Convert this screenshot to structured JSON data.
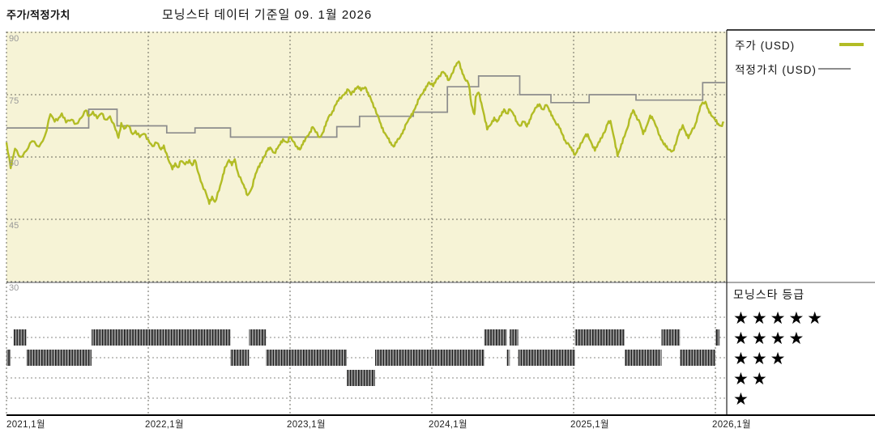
{
  "page": {
    "title": "주가/적정가치",
    "subtitle": "모닝스타 데이터 기준일 09. 1월 2026"
  },
  "legend": {
    "items": [
      {
        "label": "주가 (USD)",
        "color": "#b2bc25"
      },
      {
        "label": "적정가치 (USD)",
        "color": "#8c8c8c"
      }
    ]
  },
  "rating_legend": {
    "title": "모닝스타 등급",
    "rows": [
      {
        "stars": "★★★★★",
        "value": 5
      },
      {
        "stars": "★★★★",
        "value": 4
      },
      {
        "stars": "★★★",
        "value": 3
      },
      {
        "stars": "★★",
        "value": 2
      },
      {
        "stars": "★",
        "value": 1
      }
    ]
  },
  "axes": {
    "y_ticks": [
      "90",
      "75",
      "60",
      "45",
      "30"
    ],
    "x_ticks": [
      "2021,1월",
      "2022,1월",
      "2023,1월",
      "2024,1월",
      "2025,1월",
      "2026,1월"
    ]
  },
  "chart_data": {
    "type": "line",
    "title": "주가/적정가치",
    "as_of": "09. 1월 2026",
    "x_tick_years": [
      2021,
      2022,
      2023,
      2024,
      2025,
      2026
    ],
    "y_ticks": [
      90,
      75,
      60,
      45,
      30
    ],
    "x_range": [
      2021.0,
      2026.08
    ],
    "y_range": [
      30,
      90
    ],
    "plot_bg": "#f6f3d6",
    "grid_color": "#5a5a52",
    "series": [
      {
        "name": "주가 (USD)",
        "type": "line",
        "color": "#b2bc25",
        "points": [
          [
            2021.0,
            63.5
          ],
          [
            2021.03,
            57.3
          ],
          [
            2021.06,
            62.0
          ],
          [
            2021.1,
            60.0
          ],
          [
            2021.14,
            61.5
          ],
          [
            2021.18,
            63.8
          ],
          [
            2021.23,
            62.5
          ],
          [
            2021.27,
            65.0
          ],
          [
            2021.31,
            70.3
          ],
          [
            2021.34,
            68.5
          ],
          [
            2021.37,
            69.5
          ],
          [
            2021.39,
            70.5
          ],
          [
            2021.42,
            68.3
          ],
          [
            2021.46,
            69.0
          ],
          [
            2021.49,
            68.0
          ],
          [
            2021.53,
            69.5
          ],
          [
            2021.56,
            71.2
          ],
          [
            2021.58,
            69.8
          ],
          [
            2021.61,
            70.9
          ],
          [
            2021.64,
            69.3
          ],
          [
            2021.67,
            70.5
          ],
          [
            2021.7,
            69.0
          ],
          [
            2021.73,
            69.8
          ],
          [
            2021.77,
            66.5
          ],
          [
            2021.79,
            64.6
          ],
          [
            2021.81,
            68.2
          ],
          [
            2021.83,
            66.8
          ],
          [
            2021.86,
            67.5
          ],
          [
            2021.89,
            65.5
          ],
          [
            2021.91,
            66.3
          ],
          [
            2021.94,
            64.8
          ],
          [
            2021.97,
            65.6
          ],
          [
            2022.0,
            64.2
          ],
          [
            2022.03,
            62.6
          ],
          [
            2022.06,
            63.4
          ],
          [
            2022.09,
            61.8
          ],
          [
            2022.11,
            62.8
          ],
          [
            2022.14,
            59.5
          ],
          [
            2022.17,
            57.0
          ],
          [
            2022.19,
            58.5
          ],
          [
            2022.21,
            57.5
          ],
          [
            2022.23,
            59.0
          ],
          [
            2022.26,
            58.2
          ],
          [
            2022.29,
            59.3
          ],
          [
            2022.31,
            58.0
          ],
          [
            2022.33,
            59.2
          ],
          [
            2022.35,
            56.5
          ],
          [
            2022.38,
            53.5
          ],
          [
            2022.41,
            51.0
          ],
          [
            2022.43,
            48.7
          ],
          [
            2022.45,
            50.5
          ],
          [
            2022.47,
            49.2
          ],
          [
            2022.5,
            52.0
          ],
          [
            2022.52,
            54.5
          ],
          [
            2022.54,
            57.5
          ],
          [
            2022.57,
            59.3
          ],
          [
            2022.59,
            58.0
          ],
          [
            2022.61,
            59.5
          ],
          [
            2022.63,
            56.5
          ],
          [
            2022.66,
            54.0
          ],
          [
            2022.68,
            52.5
          ],
          [
            2022.7,
            50.8
          ],
          [
            2022.73,
            52.5
          ],
          [
            2022.75,
            55.0
          ],
          [
            2022.77,
            57.0
          ],
          [
            2022.79,
            58.5
          ],
          [
            2022.82,
            60.2
          ],
          [
            2022.84,
            61.5
          ],
          [
            2022.86,
            62.3
          ],
          [
            2022.89,
            61.0
          ],
          [
            2022.91,
            62.0
          ],
          [
            2022.93,
            63.0
          ],
          [
            2022.95,
            64.3
          ],
          [
            2022.98,
            63.5
          ],
          [
            2023.0,
            64.8
          ],
          [
            2023.02,
            63.8
          ],
          [
            2023.05,
            62.5
          ],
          [
            2023.07,
            61.8
          ],
          [
            2023.09,
            63.0
          ],
          [
            2023.11,
            64.5
          ],
          [
            2023.14,
            66.0
          ],
          [
            2023.16,
            67.2
          ],
          [
            2023.18,
            66.0
          ],
          [
            2023.21,
            64.8
          ],
          [
            2023.23,
            65.8
          ],
          [
            2023.25,
            67.5
          ],
          [
            2023.27,
            69.5
          ],
          [
            2023.3,
            71.0
          ],
          [
            2023.32,
            72.5
          ],
          [
            2023.34,
            73.5
          ],
          [
            2023.37,
            74.8
          ],
          [
            2023.39,
            75.5
          ],
          [
            2023.41,
            76.2
          ],
          [
            2023.43,
            75.0
          ],
          [
            2023.46,
            76.5
          ],
          [
            2023.48,
            77.0
          ],
          [
            2023.5,
            76.0
          ],
          [
            2023.53,
            76.8
          ],
          [
            2023.55,
            75.5
          ],
          [
            2023.57,
            74.0
          ],
          [
            2023.59,
            72.0
          ],
          [
            2023.62,
            70.0
          ],
          [
            2023.64,
            68.0
          ],
          [
            2023.66,
            66.0
          ],
          [
            2023.69,
            64.5
          ],
          [
            2023.71,
            63.5
          ],
          [
            2023.73,
            62.5
          ],
          [
            2023.75,
            63.5
          ],
          [
            2023.78,
            65.0
          ],
          [
            2023.8,
            66.5
          ],
          [
            2023.82,
            68.0
          ],
          [
            2023.85,
            69.5
          ],
          [
            2023.87,
            71.0
          ],
          [
            2023.89,
            72.5
          ],
          [
            2023.91,
            74.0
          ],
          [
            2023.94,
            75.5
          ],
          [
            2023.96,
            77.0
          ],
          [
            2023.98,
            78.0
          ],
          [
            2024.01,
            77.0
          ],
          [
            2024.03,
            78.5
          ],
          [
            2024.05,
            79.5
          ],
          [
            2024.08,
            80.5
          ],
          [
            2024.1,
            79.5
          ],
          [
            2024.12,
            78.5
          ],
          [
            2024.14,
            80.0
          ],
          [
            2024.17,
            82.0
          ],
          [
            2024.19,
            83.0
          ],
          [
            2024.21,
            81.0
          ],
          [
            2024.23,
            79.0
          ],
          [
            2024.26,
            77.5
          ],
          [
            2024.28,
            72.5
          ],
          [
            2024.3,
            70.3
          ],
          [
            2024.31,
            74.5
          ],
          [
            2024.33,
            75.5
          ],
          [
            2024.35,
            73.0
          ],
          [
            2024.37,
            70.0
          ],
          [
            2024.39,
            66.6
          ],
          [
            2024.42,
            68.0
          ],
          [
            2024.44,
            69.5
          ],
          [
            2024.46,
            68.5
          ],
          [
            2024.49,
            70.0
          ],
          [
            2024.51,
            71.5
          ],
          [
            2024.53,
            70.5
          ],
          [
            2024.55,
            71.5
          ],
          [
            2024.58,
            70.0
          ],
          [
            2024.6,
            68.5
          ],
          [
            2024.62,
            67.5
          ],
          [
            2024.65,
            68.5
          ],
          [
            2024.67,
            67.3
          ],
          [
            2024.69,
            69.0
          ],
          [
            2024.71,
            70.5
          ],
          [
            2024.74,
            72.0
          ],
          [
            2024.76,
            72.7
          ],
          [
            2024.78,
            71.5
          ],
          [
            2024.81,
            72.5
          ],
          [
            2024.83,
            71.0
          ],
          [
            2024.85,
            70.0
          ],
          [
            2024.87,
            68.5
          ],
          [
            2024.9,
            67.0
          ],
          [
            2024.92,
            65.5
          ],
          [
            2024.94,
            64.0
          ],
          [
            2024.97,
            62.8
          ],
          [
            2024.99,
            61.5
          ],
          [
            2025.01,
            60.5
          ],
          [
            2025.03,
            62.0
          ],
          [
            2025.06,
            63.5
          ],
          [
            2025.08,
            65.0
          ],
          [
            2025.1,
            65.5
          ],
          [
            2025.13,
            63.0
          ],
          [
            2025.15,
            61.5
          ],
          [
            2025.17,
            63.0
          ],
          [
            2025.19,
            64.5
          ],
          [
            2025.22,
            66.0
          ],
          [
            2025.24,
            68.0
          ],
          [
            2025.26,
            68.7
          ],
          [
            2025.29,
            64.0
          ],
          [
            2025.31,
            60.2
          ],
          [
            2025.33,
            62.0
          ],
          [
            2025.35,
            64.5
          ],
          [
            2025.38,
            67.0
          ],
          [
            2025.4,
            69.5
          ],
          [
            2025.42,
            71.3
          ],
          [
            2025.44,
            70.0
          ],
          [
            2025.47,
            68.0
          ],
          [
            2025.49,
            65.5
          ],
          [
            2025.51,
            67.0
          ],
          [
            2025.54,
            70.0
          ],
          [
            2025.56,
            69.0
          ],
          [
            2025.58,
            67.5
          ],
          [
            2025.61,
            65.0
          ],
          [
            2025.63,
            63.5
          ],
          [
            2025.65,
            62.5
          ],
          [
            2025.67,
            61.8
          ],
          [
            2025.7,
            61.5
          ],
          [
            2025.72,
            63.0
          ],
          [
            2025.74,
            65.5
          ],
          [
            2025.77,
            67.7
          ],
          [
            2025.79,
            66.0
          ],
          [
            2025.81,
            64.5
          ],
          [
            2025.83,
            66.0
          ],
          [
            2025.86,
            68.0
          ],
          [
            2025.88,
            70.5
          ],
          [
            2025.9,
            72.5
          ],
          [
            2025.93,
            73.3
          ],
          [
            2025.95,
            71.5
          ],
          [
            2025.97,
            70.0
          ],
          [
            2026.0,
            68.8
          ],
          [
            2026.02,
            68.0
          ],
          [
            2026.04,
            67.5
          ],
          [
            2026.06,
            68.2
          ]
        ]
      },
      {
        "name": "적정가치 (USD)",
        "type": "step",
        "color": "#8c8c8c",
        "steps": [
          [
            2021.0,
            67.0
          ],
          [
            2021.58,
            71.5
          ],
          [
            2021.78,
            67.5
          ],
          [
            2022.13,
            65.8
          ],
          [
            2022.33,
            67.0
          ],
          [
            2022.58,
            64.8
          ],
          [
            2023.33,
            67.3
          ],
          [
            2023.49,
            69.8
          ],
          [
            2023.87,
            70.8
          ],
          [
            2024.11,
            76.9
          ],
          [
            2024.33,
            79.5
          ],
          [
            2024.62,
            75.0
          ],
          [
            2024.84,
            73.1
          ],
          [
            2025.11,
            75.0
          ],
          [
            2025.44,
            73.7
          ],
          [
            2025.91,
            77.9
          ]
        ],
        "end": 2026.07
      }
    ],
    "ratings": {
      "name": "모닝스타 등급",
      "levels": [
        5,
        4,
        3,
        2,
        1
      ],
      "segments": [
        [
          2021.0,
          2021.03,
          3
        ],
        [
          2021.05,
          2021.14,
          4
        ],
        [
          2021.14,
          2021.6,
          3
        ],
        [
          2021.6,
          2022.58,
          4
        ],
        [
          2022.58,
          2022.71,
          3
        ],
        [
          2022.71,
          2022.83,
          4
        ],
        [
          2022.83,
          2023.4,
          3
        ],
        [
          2023.4,
          2023.6,
          2
        ],
        [
          2023.6,
          2024.37,
          3
        ],
        [
          2024.37,
          2024.53,
          4
        ],
        [
          2024.53,
          2024.55,
          3
        ],
        [
          2024.55,
          2024.61,
          4
        ],
        [
          2024.61,
          2025.01,
          3
        ],
        [
          2025.01,
          2025.36,
          4
        ],
        [
          2025.36,
          2025.62,
          3
        ],
        [
          2025.62,
          2025.75,
          4
        ],
        [
          2025.75,
          2026.0,
          3
        ],
        [
          2026.0,
          2026.03,
          4
        ]
      ]
    }
  }
}
